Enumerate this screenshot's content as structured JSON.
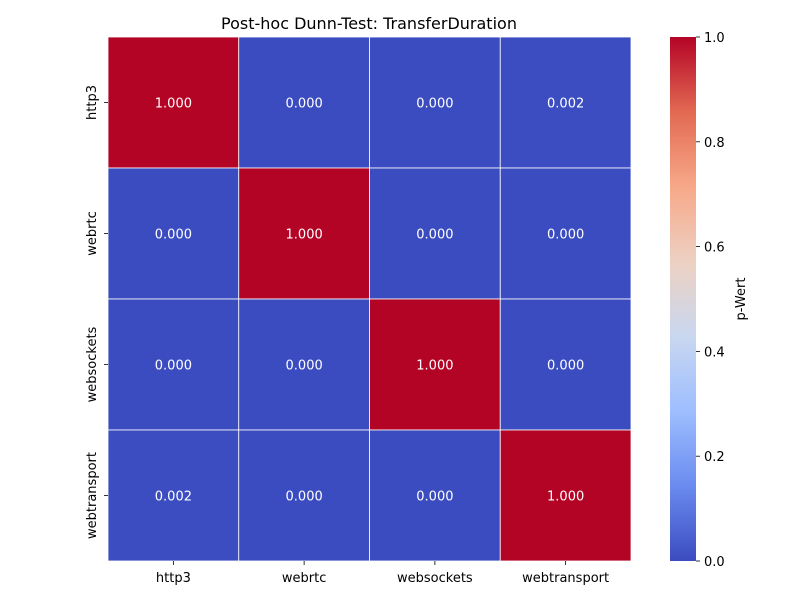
{
  "chart_data": {
    "type": "heatmap",
    "title": "Post-hoc Dunn-Test: TransferDuration",
    "xlabel": "",
    "ylabel": "",
    "x_categories": [
      "http3",
      "webrtc",
      "websockets",
      "webtransport"
    ],
    "y_categories": [
      "http3",
      "webrtc",
      "websockets",
      "webtransport"
    ],
    "values": [
      [
        1.0,
        0.0,
        0.0,
        0.002
      ],
      [
        0.0,
        1.0,
        0.0,
        0.0
      ],
      [
        0.0,
        0.0,
        1.0,
        0.0
      ],
      [
        0.002,
        0.0,
        0.0,
        1.0
      ]
    ],
    "value_labels": [
      [
        "1.000",
        "0.000",
        "0.000",
        "0.002"
      ],
      [
        "0.000",
        "1.000",
        "0.000",
        "0.000"
      ],
      [
        "0.000",
        "0.000",
        "1.000",
        "0.000"
      ],
      [
        "0.002",
        "0.000",
        "0.000",
        "1.000"
      ]
    ],
    "colormap": "coolwarm",
    "colorbar": {
      "label": "p-Wert",
      "range": [
        0.0,
        1.0
      ],
      "ticks": [
        0.0,
        0.2,
        0.4,
        0.6,
        0.8,
        1.0
      ],
      "tick_labels": [
        "0.0",
        "0.2",
        "0.4",
        "0.6",
        "0.8",
        "1.0"
      ],
      "colors": [
        "#3b4cc0",
        "#6a8bef",
        "#9ebeff",
        "#c9d7f0",
        "#edd1c2",
        "#f7a889",
        "#e26952",
        "#b40426"
      ]
    },
    "grid_line_color": "#ffffff"
  }
}
